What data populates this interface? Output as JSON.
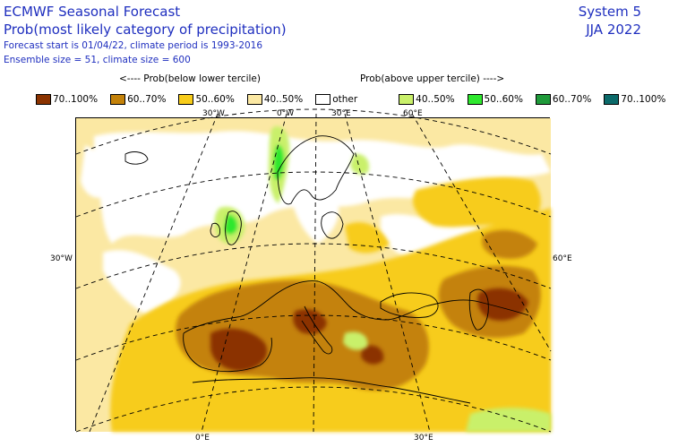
{
  "header": {
    "title": "ECMWF Seasonal Forecast",
    "subtitle": "Prob(most likely category of precipitation)",
    "forecast_info": "Forecast start is 01/04/22, climate period is 1993-2016",
    "ensemble_info": "Ensemble size = 51, climate size = 600",
    "system": "System 5",
    "season": "JJA 2022"
  },
  "legend": {
    "below_caption": "<---- Prob(below lower tercile)",
    "above_caption": "Prob(above upper tercile) ---->",
    "items": [
      {
        "label": "70..100%",
        "color": "#8b3300"
      },
      {
        "label": "60..70%",
        "color": "#c4820a"
      },
      {
        "label": "50..60%",
        "color": "#f7cc1a"
      },
      {
        "label": "40..50%",
        "color": "#fbe8a3"
      },
      {
        "label": "other",
        "color": "#ffffff"
      },
      {
        "label": "40..50%",
        "color": "#c9f06a"
      },
      {
        "label": "50..60%",
        "color": "#2ee82e"
      },
      {
        "label": "60..70%",
        "color": "#1f9a3a"
      },
      {
        "label": "70..100%",
        "color": "#0b6a6a"
      }
    ]
  },
  "map": {
    "top_labels": [
      "30°W",
      "0°W",
      "30°E",
      "60°E"
    ],
    "left_label": "30°W",
    "right_label": "60°E",
    "bottom_labels": [
      "0°E",
      "30°E"
    ]
  }
}
